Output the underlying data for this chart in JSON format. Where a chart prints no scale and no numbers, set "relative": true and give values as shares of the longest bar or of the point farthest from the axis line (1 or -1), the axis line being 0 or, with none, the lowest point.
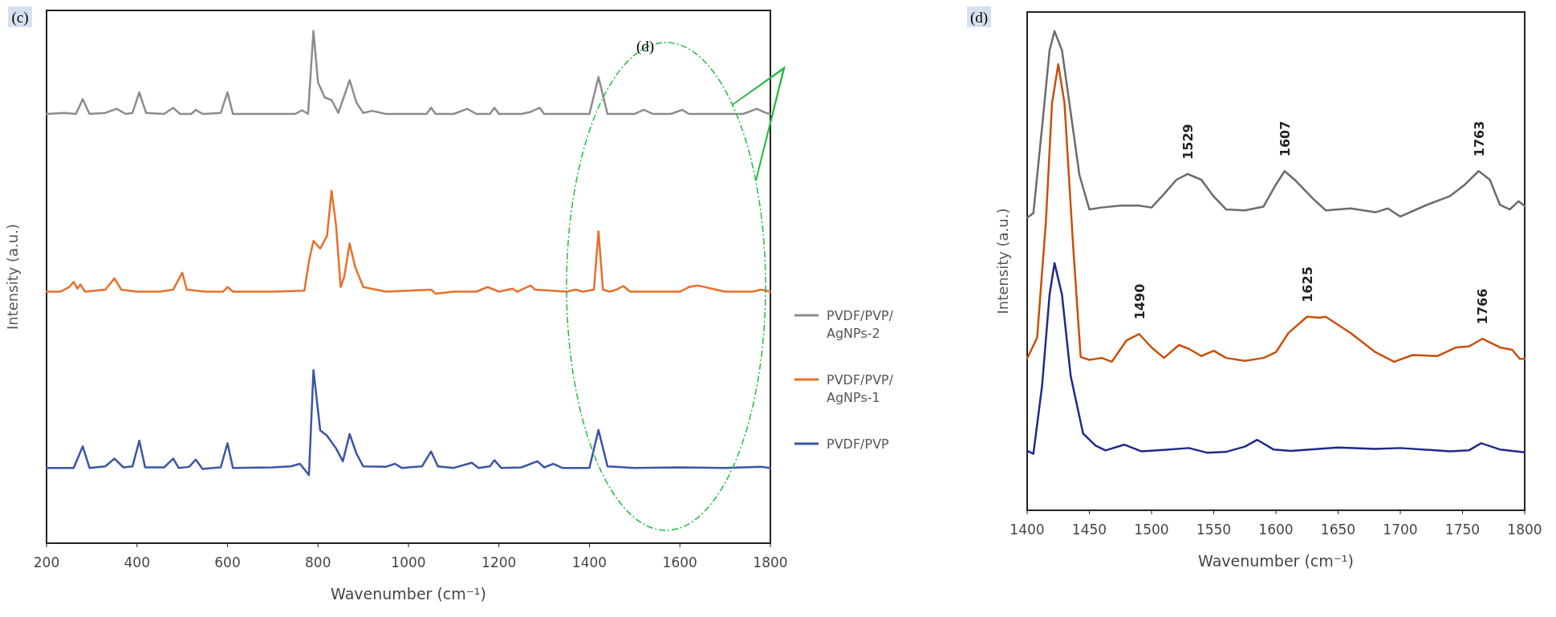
{
  "chart_data": [
    {
      "type": "line",
      "relative": true,
      "xlabel": "Wavenumber (cm⁻¹)",
      "ylabel": "Intensity (a.u.)",
      "xlim": [
        200,
        1800
      ],
      "xticks": [
        200,
        400,
        600,
        800,
        1000,
        1200,
        1400,
        1600,
        1800
      ],
      "legend": "right",
      "annotations": [
        "(c)",
        "(d)"
      ],
      "series": [
        {
          "name": "PVDF/PVP/AgNPs-2",
          "color": "#8c8c8c",
          "x": [
            200,
            240,
            265,
            280,
            295,
            330,
            355,
            375,
            390,
            405,
            420,
            460,
            480,
            495,
            520,
            530,
            545,
            585,
            600,
            612,
            700,
            750,
            765,
            778,
            790,
            800,
            815,
            830,
            845,
            870,
            885,
            900,
            920,
            950,
            1040,
            1050,
            1060,
            1100,
            1130,
            1150,
            1180,
            1190,
            1200,
            1250,
            1270,
            1290,
            1300,
            1400,
            1420,
            1440,
            1500,
            1520,
            1540,
            1580,
            1605,
            1620,
            1740,
            1770,
            1790,
            1800
          ],
          "values": [
            0.838,
            0.84,
            0.838,
            0.867,
            0.838,
            0.84,
            0.848,
            0.838,
            0.84,
            0.88,
            0.84,
            0.838,
            0.85,
            0.838,
            0.838,
            0.846,
            0.838,
            0.84,
            0.88,
            0.838,
            0.838,
            0.838,
            0.845,
            0.838,
            1.0,
            0.9,
            0.87,
            0.865,
            0.84,
            0.904,
            0.86,
            0.84,
            0.844,
            0.838,
            0.838,
            0.85,
            0.838,
            0.838,
            0.848,
            0.838,
            0.838,
            0.85,
            0.838,
            0.838,
            0.842,
            0.85,
            0.838,
            0.838,
            0.91,
            0.838,
            0.838,
            0.846,
            0.838,
            0.838,
            0.846,
            0.838,
            0.838,
            0.848,
            0.84,
            0.838
          ]
        },
        {
          "name": "PVDF/PVP/AgNPs-1",
          "color": "#e8702a",
          "x": [
            200,
            230,
            250,
            260,
            268,
            275,
            285,
            330,
            350,
            365,
            400,
            450,
            480,
            500,
            510,
            550,
            590,
            600,
            612,
            700,
            770,
            780,
            790,
            805,
            820,
            830,
            840,
            850,
            858,
            870,
            882,
            900,
            950,
            1000,
            1050,
            1060,
            1100,
            1150,
            1175,
            1200,
            1230,
            1240,
            1270,
            1280,
            1350,
            1370,
            1385,
            1410,
            1420,
            1430,
            1445,
            1460,
            1475,
            1490,
            1600,
            1620,
            1640,
            1670,
            1700,
            1760,
            1780,
            1800
          ],
          "values": [
            0.491,
            0.491,
            0.5,
            0.51,
            0.497,
            0.505,
            0.491,
            0.495,
            0.517,
            0.495,
            0.491,
            0.491,
            0.495,
            0.528,
            0.495,
            0.491,
            0.491,
            0.5,
            0.491,
            0.491,
            0.493,
            0.55,
            0.59,
            0.575,
            0.6,
            0.688,
            0.62,
            0.5,
            0.52,
            0.585,
            0.54,
            0.5,
            0.491,
            0.493,
            0.495,
            0.487,
            0.491,
            0.491,
            0.5,
            0.491,
            0.497,
            0.491,
            0.503,
            0.495,
            0.491,
            0.495,
            0.491,
            0.495,
            0.609,
            0.495,
            0.491,
            0.495,
            0.502,
            0.491,
            0.491,
            0.5,
            0.503,
            0.497,
            0.491,
            0.491,
            0.495,
            0.491
          ]
        },
        {
          "name": "PVDF/PVP",
          "color": "#3a55a4",
          "x": [
            200,
            260,
            280,
            295,
            330,
            350,
            370,
            390,
            405,
            418,
            460,
            480,
            492,
            515,
            530,
            545,
            585,
            600,
            612,
            700,
            740,
            760,
            780,
            790,
            805,
            820,
            840,
            855,
            870,
            885,
            900,
            950,
            970,
            985,
            1030,
            1050,
            1065,
            1100,
            1140,
            1155,
            1180,
            1190,
            1205,
            1250,
            1285,
            1300,
            1320,
            1340,
            1400,
            1420,
            1440,
            1500,
            1600,
            1700,
            1780,
            1800
          ],
          "values": [
            0.147,
            0.147,
            0.189,
            0.147,
            0.15,
            0.165,
            0.148,
            0.15,
            0.2,
            0.148,
            0.148,
            0.165,
            0.147,
            0.149,
            0.163,
            0.145,
            0.148,
            0.195,
            0.147,
            0.148,
            0.15,
            0.155,
            0.133,
            0.338,
            0.22,
            0.21,
            0.185,
            0.16,
            0.213,
            0.175,
            0.15,
            0.149,
            0.155,
            0.147,
            0.15,
            0.179,
            0.15,
            0.147,
            0.157,
            0.147,
            0.15,
            0.162,
            0.147,
            0.148,
            0.16,
            0.148,
            0.155,
            0.147,
            0.147,
            0.221,
            0.15,
            0.147,
            0.148,
            0.147,
            0.149,
            0.147
          ]
        }
      ]
    },
    {
      "type": "line",
      "relative": true,
      "xlabel": "Wavenumber (cm⁻¹)",
      "ylabel": "Intensity (a.u.)",
      "xlim": [
        1400,
        1800
      ],
      "xticks": [
        1400,
        1450,
        1500,
        1550,
        1600,
        1650,
        1700,
        1750,
        1800
      ],
      "annotations": [
        "(d)",
        {
          "text": "1529",
          "x": 1529,
          "y": 0.702
        },
        {
          "text": "1607",
          "x": 1607,
          "y": 0.708
        },
        {
          "text": "1763",
          "x": 1763,
          "y": 0.708
        },
        {
          "text": "1490",
          "x": 1490,
          "y": 0.368
        },
        {
          "text": "1625",
          "x": 1625,
          "y": 0.404
        },
        {
          "text": "1766",
          "x": 1766,
          "y": 0.358
        }
      ],
      "series": [
        {
          "color": "#6b6b6b",
          "x": [
            1400,
            1405,
            1412,
            1418,
            1422,
            1428,
            1435,
            1442,
            1450,
            1460,
            1475,
            1490,
            1500,
            1510,
            1520,
            1529,
            1540,
            1550,
            1560,
            1575,
            1590,
            1600,
            1607,
            1615,
            1630,
            1640,
            1660,
            1680,
            1690,
            1700,
            1720,
            1740,
            1752,
            1763,
            1772,
            1780,
            1788,
            1795,
            1800
          ],
          "values": [
            0.611,
            0.62,
            0.8,
            0.96,
            1.0,
            0.96,
            0.83,
            0.7,
            0.628,
            0.632,
            0.636,
            0.636,
            0.632,
            0.66,
            0.69,
            0.702,
            0.69,
            0.655,
            0.628,
            0.626,
            0.634,
            0.68,
            0.708,
            0.69,
            0.65,
            0.626,
            0.63,
            0.622,
            0.63,
            0.613,
            0.636,
            0.656,
            0.68,
            0.708,
            0.69,
            0.638,
            0.628,
            0.645,
            0.635
          ]
        },
        {
          "color": "#c8500a",
          "x": [
            1400,
            1408,
            1415,
            1420,
            1425,
            1430,
            1437,
            1443,
            1450,
            1460,
            1468,
            1480,
            1490,
            1500,
            1510,
            1522,
            1530,
            1540,
            1550,
            1560,
            1575,
            1590,
            1600,
            1610,
            1625,
            1635,
            1640,
            1660,
            1680,
            1695,
            1710,
            1730,
            1745,
            1755,
            1766,
            1780,
            1790,
            1796,
            1800
          ],
          "values": [
            0.317,
            0.36,
            0.6,
            0.85,
            0.931,
            0.85,
            0.55,
            0.32,
            0.314,
            0.318,
            0.31,
            0.355,
            0.368,
            0.34,
            0.318,
            0.345,
            0.337,
            0.322,
            0.333,
            0.318,
            0.312,
            0.318,
            0.33,
            0.37,
            0.404,
            0.402,
            0.404,
            0.37,
            0.33,
            0.31,
            0.324,
            0.322,
            0.34,
            0.342,
            0.358,
            0.34,
            0.335,
            0.316,
            0.316
          ]
        },
        {
          "color": "#1f2a8a",
          "x": [
            1400,
            1405,
            1412,
            1418,
            1422,
            1428,
            1435,
            1445,
            1455,
            1463,
            1478,
            1492,
            1510,
            1530,
            1545,
            1560,
            1575,
            1585,
            1598,
            1612,
            1650,
            1680,
            1700,
            1740,
            1755,
            1765,
            1780,
            1800
          ],
          "values": [
            0.124,
            0.118,
            0.26,
            0.45,
            0.516,
            0.45,
            0.28,
            0.16,
            0.135,
            0.125,
            0.137,
            0.123,
            0.126,
            0.13,
            0.12,
            0.122,
            0.133,
            0.147,
            0.127,
            0.124,
            0.131,
            0.128,
            0.13,
            0.123,
            0.125,
            0.14,
            0.127,
            0.121
          ]
        }
      ]
    }
  ]
}
